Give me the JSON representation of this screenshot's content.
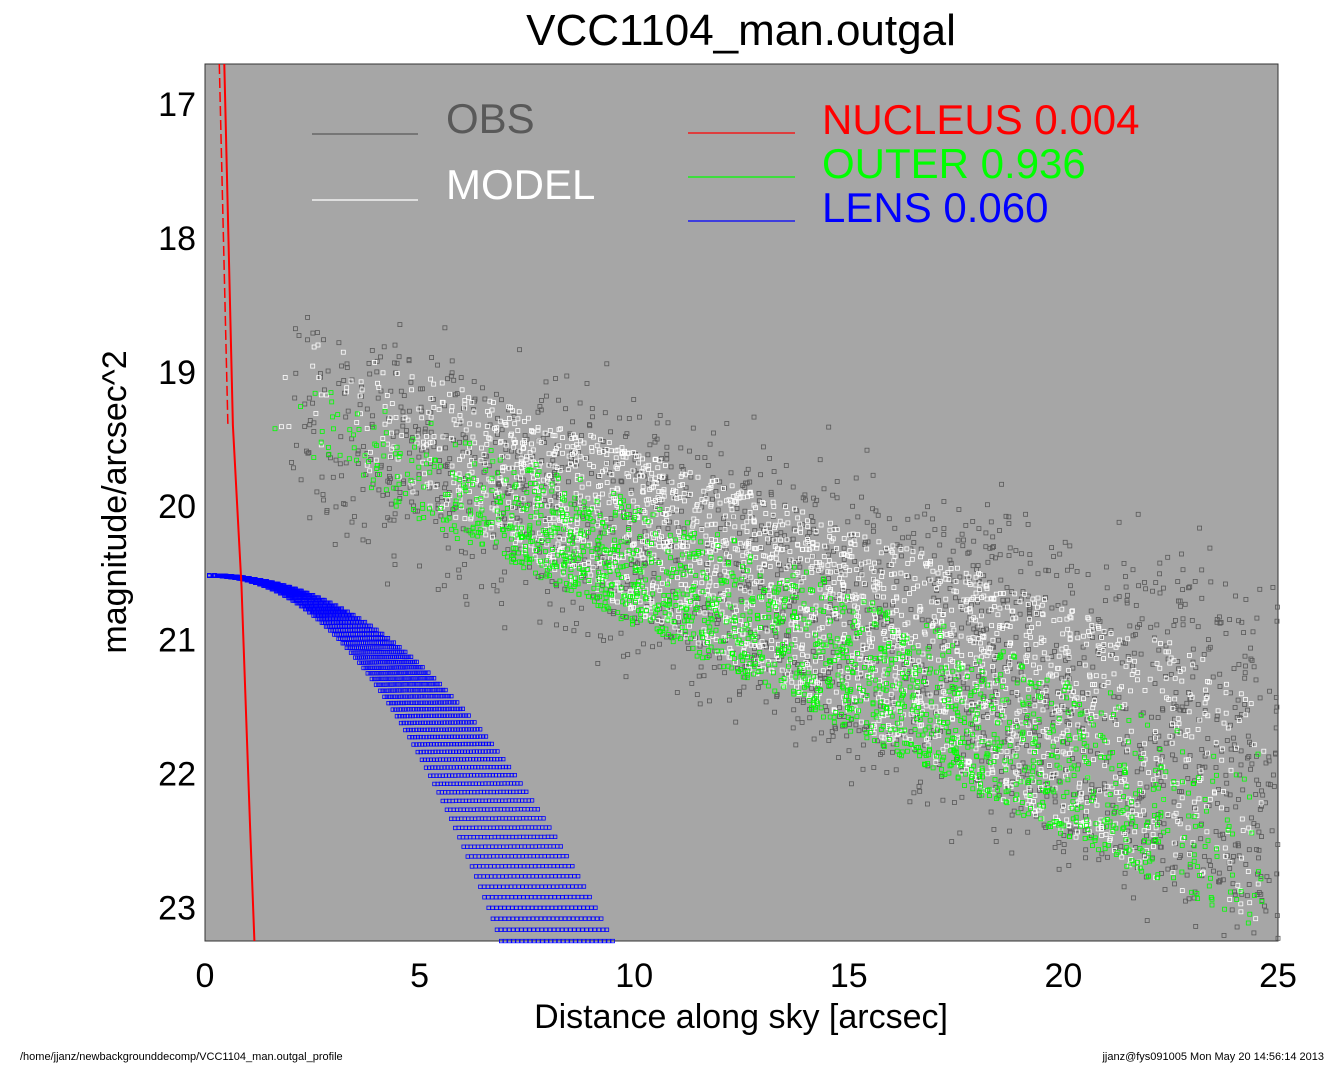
{
  "chart_data": {
    "type": "scatter",
    "title": "VCC1104_man.outgal",
    "xlabel": "Distance along sky [arcsec]",
    "ylabel": "magnitude/arcsec^2",
    "xlim": [
      0,
      25
    ],
    "ylim": [
      23.25,
      16.7
    ],
    "y_inverted": true,
    "xticks": [
      0,
      5,
      10,
      15,
      20,
      25
    ],
    "yticks": [
      17,
      18,
      19,
      20,
      21,
      22,
      23
    ],
    "background": "#a6a6a6",
    "legend": {
      "placement": "top",
      "entries": [
        {
          "label": "OBS",
          "color": "#595959"
        },
        {
          "label": "MODEL",
          "color": "#ffffff"
        }
      ]
    },
    "components": [
      {
        "name": "NUCLEUS",
        "fraction": "0.004",
        "color": "#ff0000"
      },
      {
        "name": "OUTER",
        "fraction": "0.936",
        "color": "#00ff00"
      },
      {
        "name": "LENS",
        "fraction": "0.060",
        "color": "#0000ff"
      }
    ],
    "series": [
      {
        "name": "OBS",
        "style": "scatter-open-squares",
        "color": "#595959",
        "envelope": {
          "x": [
            2,
            25
          ],
          "upper_y": [
            18.7,
            20.7
          ],
          "lower_y": [
            19.9,
            23.3
          ]
        },
        "scatter_mag": 0.35
      },
      {
        "name": "MODEL",
        "style": "scatter-open-squares",
        "color": "#ffffff",
        "envelope": {
          "x": [
            0.9,
            25
          ],
          "upper_y": [
            18.55,
            21.3
          ],
          "lower_y": [
            19.3,
            23.25
          ]
        }
      },
      {
        "name": "OUTER",
        "style": "scatter-open-squares",
        "color": "#00ff00",
        "envelope": {
          "x": [
            0.5,
            25
          ],
          "upper_y": [
            18.7,
            21.9
          ],
          "lower_y": [
            19.4,
            23.25
          ]
        }
      },
      {
        "name": "LENS",
        "style": "scatter-open-squares",
        "color": "#0000ff",
        "profile": {
          "y0": 20.52,
          "x_start": 0.1,
          "x_edge_at_bottom": [
            6.9,
            9.5
          ],
          "bottom_y": 23.25
        }
      },
      {
        "name": "NUCLEUS",
        "style": "line",
        "color": "#ff0000",
        "points": {
          "x": [
            0.45,
            0.65,
            0.85,
            1.05,
            1.15
          ],
          "y": [
            16.7,
            19.4,
            20.6,
            22.4,
            23.25
          ]
        }
      }
    ]
  },
  "footer": {
    "left": "/home/jjanz/newbackgrounddecomp/VCC1104_man.outgal_profile",
    "right": "jjanz@fys091005  Mon May 20 14:56:14 2013"
  }
}
